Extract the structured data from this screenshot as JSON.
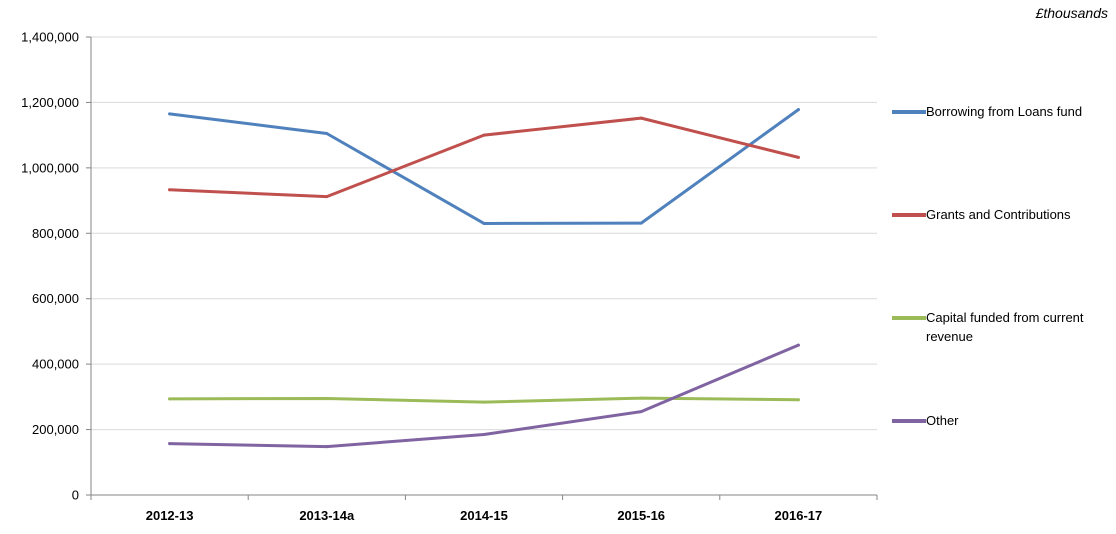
{
  "chart_data": {
    "type": "line",
    "unit_label": "£thousands",
    "categories": [
      "2012-13",
      "2013-14a",
      "2014-15",
      "2015-16",
      "2016-17"
    ],
    "y_ticks": [
      "0",
      "200,000",
      "400,000",
      "600,000",
      "800,000",
      "1,000,000",
      "1,200,000",
      "1,400,000"
    ],
    "ylim": [
      0,
      1400000
    ],
    "grid": true,
    "legend_position": "right",
    "series": [
      {
        "name": "Borrowing from Loans fund",
        "color": "#4F81BD",
        "values": [
          1165000,
          1105000,
          830000,
          831000,
          1178000
        ]
      },
      {
        "name": "Grants and Contributions",
        "color": "#C0504D",
        "values": [
          933000,
          912000,
          1100000,
          1152000,
          1032000
        ]
      },
      {
        "name": "Capital funded from current revenue",
        "color": "#9BBB59",
        "values": [
          294000,
          295000,
          284000,
          296000,
          291000
        ]
      },
      {
        "name": "Other",
        "color": "#8064A2",
        "values": [
          157000,
          148000,
          185000,
          255000,
          458000
        ]
      }
    ]
  }
}
